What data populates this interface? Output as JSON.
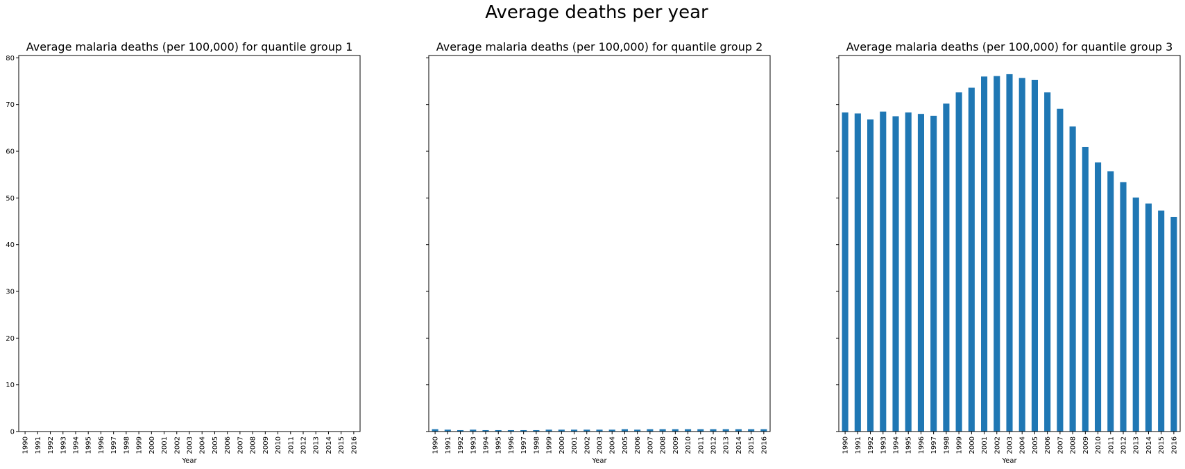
{
  "figure": {
    "title": "Average deaths per year"
  },
  "chart_data": [
    {
      "type": "bar",
      "title": "Average malaria deaths (per 100,000) for quantile group 1",
      "xlabel": "Year",
      "ylabel": "",
      "ylim": [
        0,
        80.5
      ],
      "yticks": [
        0,
        10,
        20,
        30,
        40,
        50,
        60,
        70,
        80
      ],
      "show_ytick_labels": true,
      "color": "#1f77b4",
      "categories": [
        "1990",
        "1991",
        "1992",
        "1993",
        "1994",
        "1995",
        "1996",
        "1997",
        "1998",
        "1999",
        "2000",
        "2001",
        "2002",
        "2003",
        "2004",
        "2005",
        "2006",
        "2007",
        "2008",
        "2009",
        "2010",
        "2011",
        "2012",
        "2013",
        "2014",
        "2015",
        "2016"
      ],
      "values": [
        0,
        0,
        0,
        0,
        0,
        0,
        0,
        0,
        0,
        0,
        0,
        0,
        0,
        0,
        0,
        0,
        0,
        0,
        0,
        0,
        0,
        0,
        0,
        0,
        0,
        0,
        0
      ]
    },
    {
      "type": "bar",
      "title": "Average malaria deaths (per 100,000) for quantile group 2",
      "xlabel": "Year",
      "ylabel": "",
      "ylim": [
        0,
        80.5
      ],
      "yticks": [
        0,
        10,
        20,
        30,
        40,
        50,
        60,
        70,
        80
      ],
      "show_ytick_labels": false,
      "color": "#1f77b4",
      "categories": [
        "1990",
        "1991",
        "1992",
        "1993",
        "1994",
        "1995",
        "1996",
        "1997",
        "1998",
        "1999",
        "2000",
        "2001",
        "2002",
        "2003",
        "2004",
        "2005",
        "2006",
        "2007",
        "2008",
        "2009",
        "2010",
        "2011",
        "2012",
        "2013",
        "2014",
        "2015",
        "2016"
      ],
      "values": [
        0.5,
        0.4,
        0.3,
        0.4,
        0.3,
        0.3,
        0.3,
        0.3,
        0.3,
        0.4,
        0.4,
        0.4,
        0.4,
        0.4,
        0.4,
        0.5,
        0.4,
        0.5,
        0.5,
        0.5,
        0.5,
        0.5,
        0.5,
        0.5,
        0.5,
        0.5,
        0.5
      ]
    },
    {
      "type": "bar",
      "title": "Average malaria deaths (per 100,000) for quantile group 3",
      "xlabel": "Year",
      "ylabel": "",
      "ylim": [
        0,
        80.5
      ],
      "yticks": [
        0,
        10,
        20,
        30,
        40,
        50,
        60,
        70,
        80
      ],
      "show_ytick_labels": false,
      "color": "#1f77b4",
      "categories": [
        "1990",
        "1991",
        "1992",
        "1993",
        "1994",
        "1995",
        "1996",
        "1997",
        "1998",
        "1999",
        "2000",
        "2001",
        "2002",
        "2003",
        "2004",
        "2005",
        "2006",
        "2007",
        "2008",
        "2009",
        "2010",
        "2011",
        "2012",
        "2013",
        "2014",
        "2015",
        "2016"
      ],
      "values": [
        68.3,
        68.1,
        66.8,
        68.5,
        67.5,
        68.3,
        68.0,
        67.6,
        70.2,
        72.6,
        73.6,
        76.0,
        76.1,
        76.5,
        75.7,
        75.3,
        72.6,
        69.1,
        65.3,
        60.9,
        57.6,
        55.7,
        53.4,
        50.1,
        48.8,
        47.3,
        45.9
      ]
    }
  ]
}
